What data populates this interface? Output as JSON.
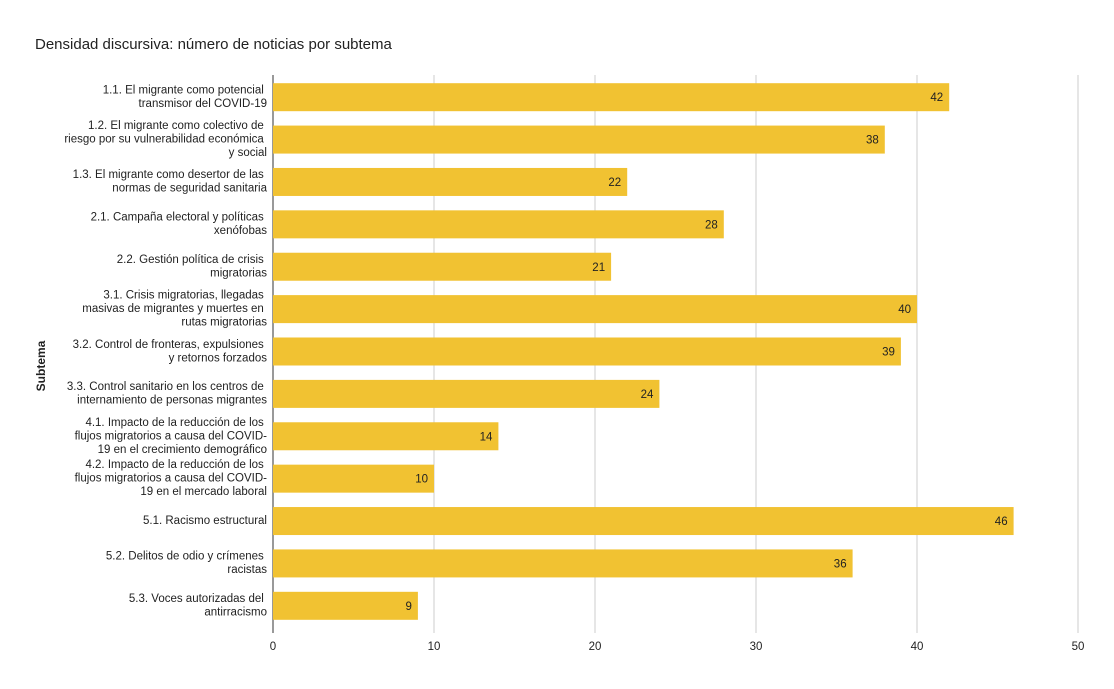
{
  "chart_data": {
    "type": "bar",
    "orientation": "horizontal",
    "title": "Densidad discursiva: número de noticias por subtema",
    "y_label": "Subtema",
    "categories": [
      "1.1. El migrante como potencial transmisor del COVID-19",
      "1.2. El migrante como colectivo de riesgo por su vulnerabilidad económica y social",
      "1.3. El migrante como desertor de las normas de seguridad sanitaria",
      "2.1. Campaña electoral y políticas xenófobas",
      "2.2. Gestión política de crisis migratorias",
      "3.1. Crisis migratorias, llegadas masivas de migrantes y muertes en rutas migratorias",
      "3.2. Control de fronteras, expulsiones y retornos forzados",
      "3.3. Control sanitario en los centros de internamiento de personas migrantes",
      "4.1. Impacto de la reducción de los flujos migratorios a causa del COVID-19 en el crecimiento demográfico",
      "4.2. Impacto de la reducción de los flujos migratorios a causa del COVID-19 en el mercado laboral",
      "5.1. Racismo estructural",
      "5.2. Delitos de odio y crímenes racistas",
      "5.3. Voces autorizadas del antirracismo"
    ],
    "values": [
      42,
      38,
      22,
      28,
      21,
      40,
      39,
      24,
      14,
      10,
      46,
      36,
      9
    ],
    "color": "#f1c232",
    "xlim": [
      0,
      50
    ],
    "xticks": [
      0,
      10,
      20,
      30,
      40,
      50
    ],
    "grid": true
  }
}
